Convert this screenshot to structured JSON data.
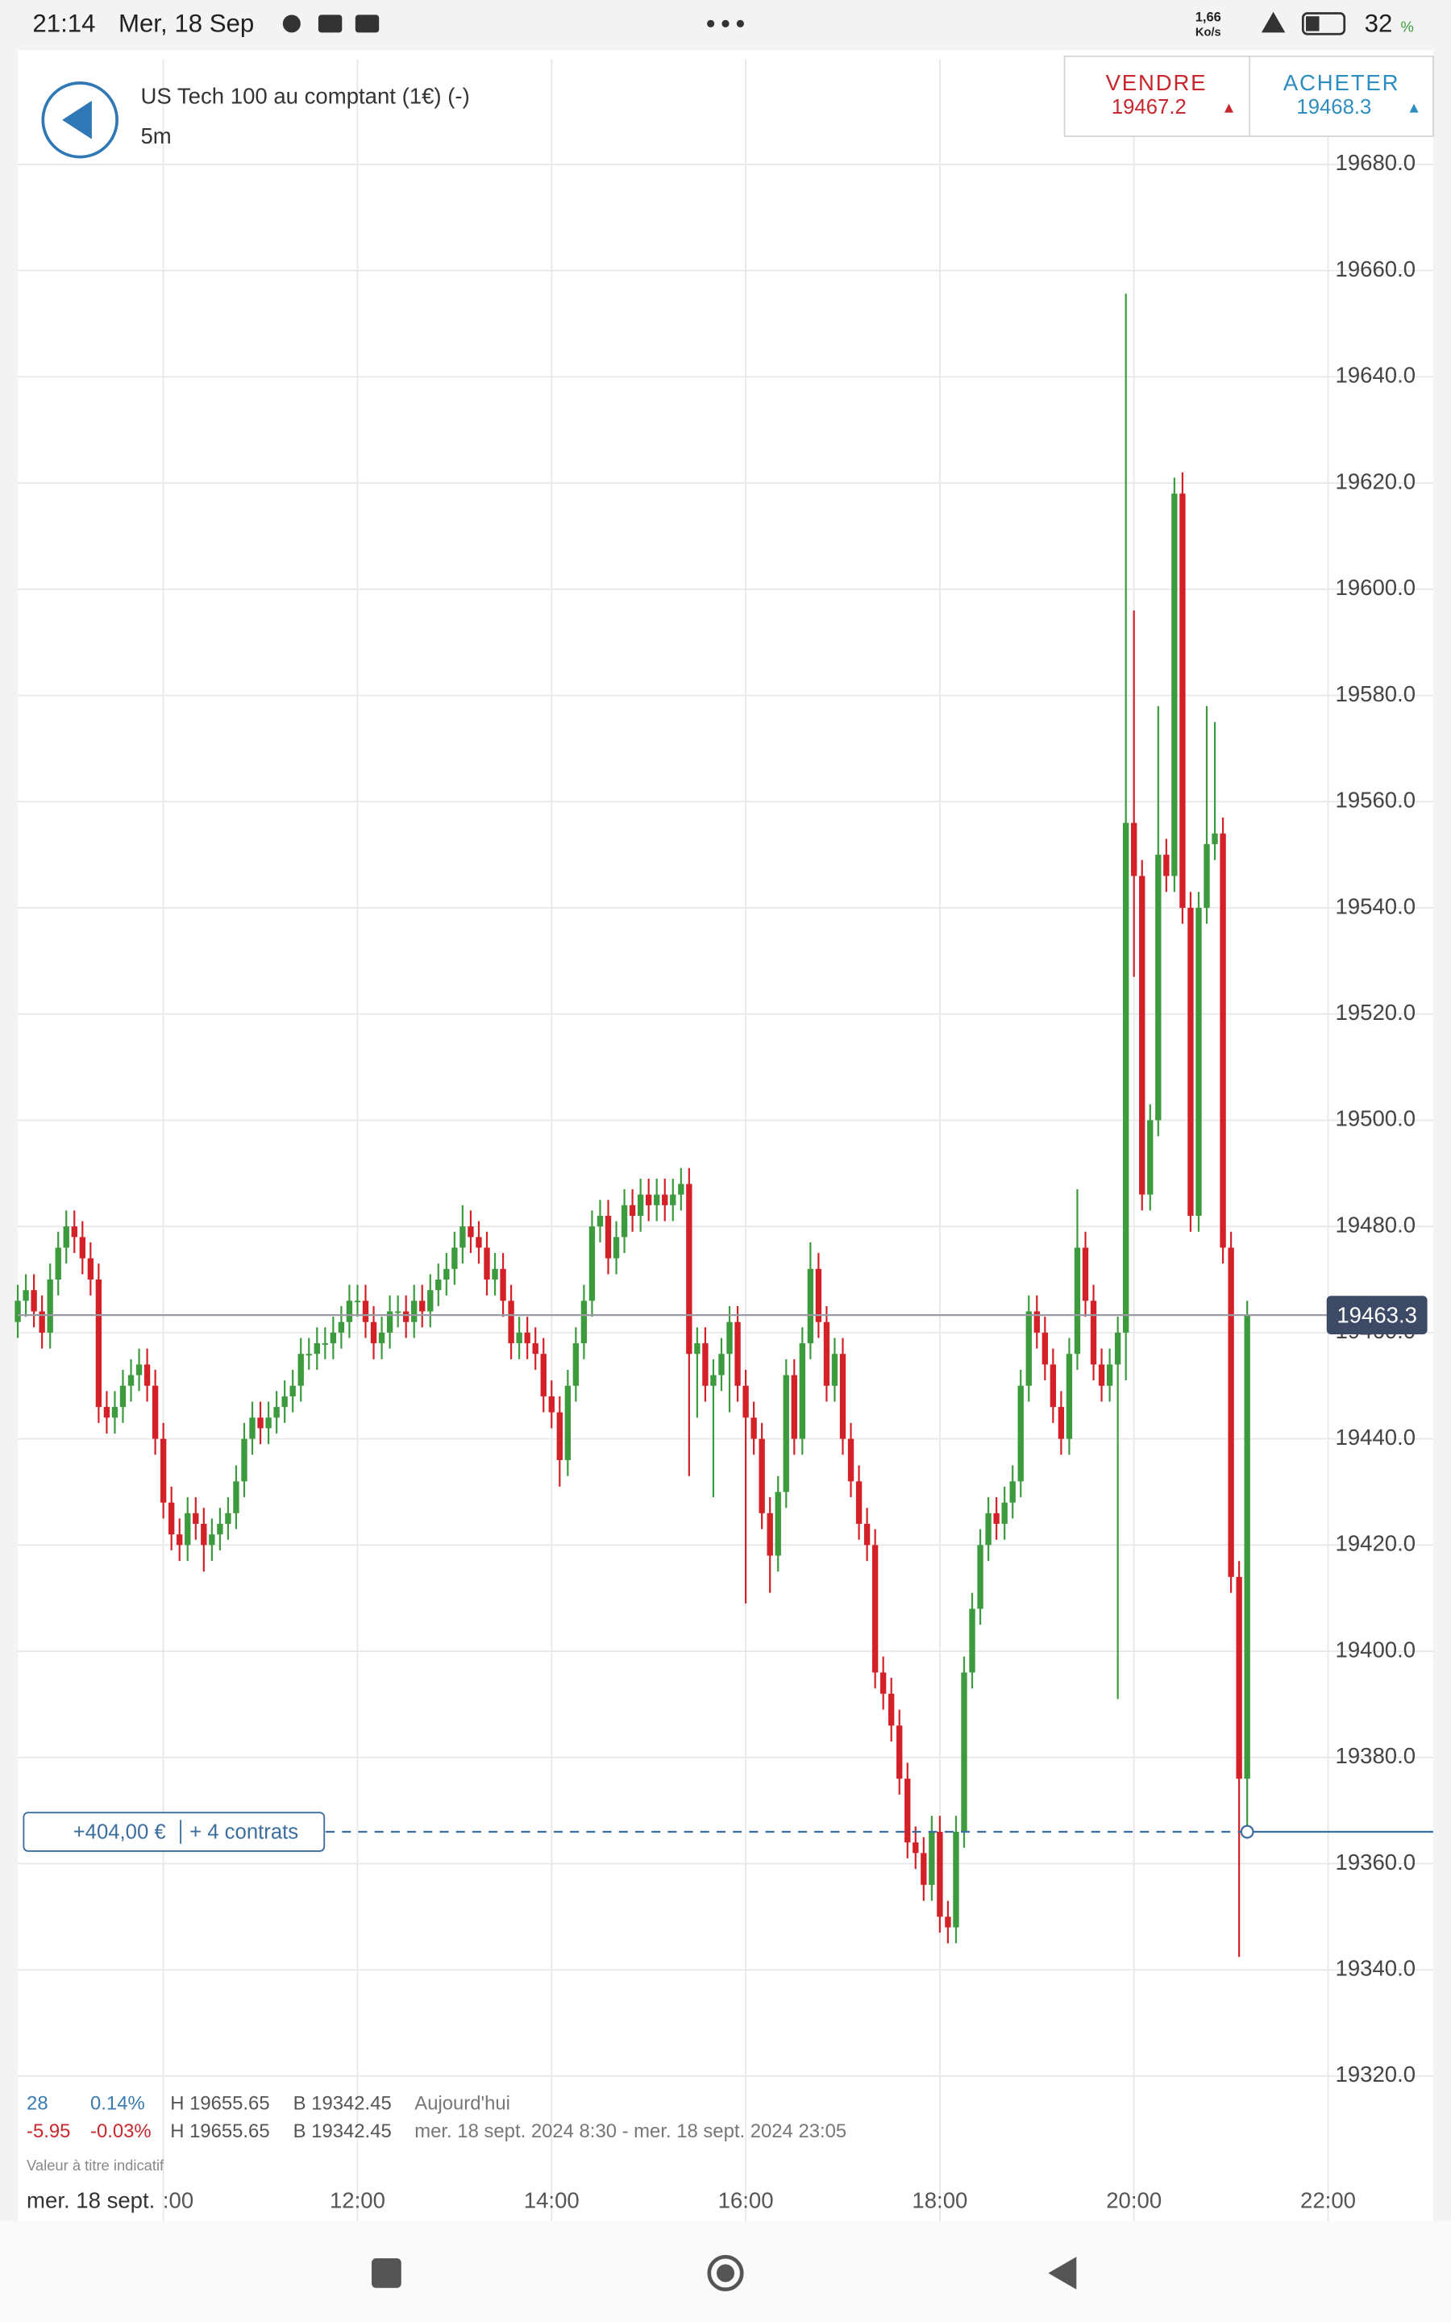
{
  "status_bar": {
    "time": "21:14",
    "date": "Mer, 18 Sep",
    "speed": "1,66",
    "speed_unit": "Ko/s",
    "battery": "32",
    "battery_unit": "%"
  },
  "header": {
    "title": "US Tech 100 au comptant (1€) (-)",
    "timeframe": "5m",
    "sell_label": "VENDRE",
    "sell_price": 19467.2,
    "buy_label": "ACHETER",
    "buy_price": 19468.3
  },
  "position": {
    "pnl": "+404,00 €",
    "contracts": "+ 4 contrats",
    "level": 19366
  },
  "stats": {
    "row1": [
      "28",
      "0.14%",
      "H 19655.65",
      "B 19342.45",
      "Aujourd'hui"
    ],
    "row2": [
      "-5.95",
      "-0.03%",
      "H 19655.65",
      "B 19342.45",
      "mer. 18 sept. 2024 8:30 - mer. 18 sept. 2024 23:05"
    ],
    "note": "Valeur à titre indicatif",
    "date_label": "mer. 18 sept."
  },
  "chart_data": {
    "type": "candlestick",
    "up_color": "#3c9b3c",
    "down_color": "#d42027",
    "grid": true,
    "xlim": [
      "08:30",
      "23:05"
    ],
    "ylim": [
      19290,
      19700
    ],
    "xticks": [
      {
        "value": "10:00",
        "label": ":00"
      },
      "12:00",
      "14:00",
      "16:00",
      "18:00",
      "20:00",
      "22:00"
    ],
    "yticks": [
      {
        "value": 19320,
        "label": "19320.0"
      },
      {
        "value": 19340,
        "label": "19340.0"
      },
      {
        "value": 19360,
        "label": "19360.0"
      },
      {
        "value": 19380,
        "label": "19380.0"
      },
      {
        "value": 19400,
        "label": "19400.0"
      },
      {
        "value": 19420,
        "label": "19420.0"
      },
      {
        "value": 19440,
        "label": "19440.0"
      },
      {
        "value": 19460,
        "label": "19460.0"
      },
      {
        "value": 19480,
        "label": "19480.0"
      },
      {
        "value": 19500,
        "label": "19500.0"
      },
      {
        "value": 19520,
        "label": "19520.0"
      },
      {
        "value": 19540,
        "label": "19540.0"
      },
      {
        "value": 19560,
        "label": "19560.0"
      },
      {
        "value": 19580,
        "label": "19580.0"
      },
      {
        "value": 19600,
        "label": "19600.0"
      },
      {
        "value": 19620,
        "label": "19620.0"
      },
      {
        "value": 19640,
        "label": "19640.0"
      },
      {
        "value": 19660,
        "label": "19660.0"
      },
      {
        "value": 19680,
        "label": "19680.0"
      }
    ],
    "last_price": 19463.3,
    "x": [
      "08:30",
      "08:35",
      "08:40",
      "08:45",
      "08:50",
      "08:55",
      "09:00",
      "09:05",
      "09:10",
      "09:15",
      "09:20",
      "09:25",
      "09:30",
      "09:35",
      "09:40",
      "09:45",
      "09:50",
      "09:55",
      "10:00",
      "10:05",
      "10:10",
      "10:15",
      "10:20",
      "10:25",
      "10:30",
      "10:35",
      "10:40",
      "10:45",
      "10:50",
      "10:55",
      "11:00",
      "11:05",
      "11:10",
      "11:15",
      "11:20",
      "11:25",
      "11:30",
      "11:35",
      "11:40",
      "11:45",
      "11:50",
      "11:55",
      "12:00",
      "12:05",
      "12:10",
      "12:15",
      "12:20",
      "12:25",
      "12:30",
      "12:35",
      "12:40",
      "12:45",
      "12:50",
      "12:55",
      "13:00",
      "13:05",
      "13:10",
      "13:15",
      "13:20",
      "13:25",
      "13:30",
      "13:35",
      "13:40",
      "13:45",
      "13:50",
      "13:55",
      "14:00",
      "14:05",
      "14:10",
      "14:15",
      "14:20",
      "14:25",
      "14:30",
      "14:35",
      "14:40",
      "14:45",
      "14:50",
      "14:55",
      "15:00",
      "15:05",
      "15:10",
      "15:15",
      "15:20",
      "15:25",
      "15:30",
      "15:35",
      "15:40",
      "15:45",
      "15:50",
      "15:55",
      "16:00",
      "16:05",
      "16:10",
      "16:15",
      "16:20",
      "16:25",
      "16:30",
      "16:35",
      "16:40",
      "16:45",
      "16:50",
      "16:55",
      "17:00",
      "17:05",
      "17:10",
      "17:15",
      "17:20",
      "17:25",
      "17:30",
      "17:35",
      "17:40",
      "17:45",
      "17:50",
      "17:55",
      "18:00",
      "18:05",
      "18:10",
      "18:15",
      "18:20",
      "18:25",
      "18:30",
      "18:35",
      "18:40",
      "18:45",
      "18:50",
      "18:55",
      "19:00",
      "19:05",
      "19:10",
      "19:15",
      "19:20",
      "19:25",
      "19:30",
      "19:35",
      "19:40",
      "19:45",
      "19:50",
      "19:55",
      "20:00",
      "20:05",
      "20:10",
      "20:15",
      "20:20",
      "20:25",
      "20:30",
      "20:35",
      "20:40",
      "20:45",
      "20:50",
      "20:55",
      "21:00",
      "21:05",
      "21:10"
    ],
    "ohlc": [
      [
        19462,
        19469,
        19459,
        19466
      ],
      [
        19466,
        19471,
        19463,
        19468
      ],
      [
        19468,
        19471,
        19461,
        19464
      ],
      [
        19464,
        19467,
        19457,
        19460
      ],
      [
        19460,
        19473,
        19457,
        19470
      ],
      [
        19470,
        19479,
        19467,
        19476
      ],
      [
        19476,
        19483,
        19473,
        19480
      ],
      [
        19480,
        19483,
        19475,
        19478
      ],
      [
        19478,
        19481,
        19471,
        19474
      ],
      [
        19474,
        19477,
        19467,
        19470
      ],
      [
        19470,
        19473,
        19443,
        19446
      ],
      [
        19446,
        19449,
        19441,
        19444
      ],
      [
        19444,
        19449,
        19441,
        19446
      ],
      [
        19446,
        19453,
        19443,
        19450
      ],
      [
        19450,
        19455,
        19447,
        19452
      ],
      [
        19452,
        19457,
        19449,
        19454
      ],
      [
        19454,
        19457,
        19447,
        19450
      ],
      [
        19450,
        19453,
        19437,
        19440
      ],
      [
        19440,
        19443,
        19425,
        19428
      ],
      [
        19428,
        19431,
        19419,
        19422
      ],
      [
        19422,
        19425,
        19417,
        19420
      ],
      [
        19420,
        19429,
        19417,
        19426
      ],
      [
        19426,
        19429,
        19421,
        19424
      ],
      [
        19424,
        19427,
        19415,
        19420
      ],
      [
        19420,
        19425,
        19417,
        19422
      ],
      [
        19422,
        19427,
        19419,
        19424
      ],
      [
        19424,
        19429,
        19421,
        19426
      ],
      [
        19426,
        19435,
        19423,
        19432
      ],
      [
        19432,
        19443,
        19429,
        19440
      ],
      [
        19440,
        19447,
        19437,
        19444
      ],
      [
        19444,
        19447,
        19439,
        19442
      ],
      [
        19442,
        19447,
        19439,
        19444
      ],
      [
        19444,
        19449,
        19441,
        19446
      ],
      [
        19446,
        19451,
        19443,
        19448
      ],
      [
        19448,
        19453,
        19445,
        19450
      ],
      [
        19450,
        19459,
        19447,
        19456
      ],
      [
        19456,
        19459,
        19453,
        19456
      ],
      [
        19456,
        19461,
        19453,
        19458
      ],
      [
        19458,
        19461,
        19455,
        19458
      ],
      [
        19458,
        19463,
        19455,
        19460
      ],
      [
        19460,
        19465,
        19457,
        19462
      ],
      [
        19462,
        19469,
        19459,
        19466
      ],
      [
        19466,
        19469,
        19463,
        19466
      ],
      [
        19466,
        19469,
        19459,
        19462
      ],
      [
        19462,
        19465,
        19455,
        19458
      ],
      [
        19458,
        19463,
        19455,
        19460
      ],
      [
        19460,
        19467,
        19457,
        19464
      ],
      [
        19464,
        19467,
        19461,
        19464
      ],
      [
        19464,
        19467,
        19459,
        19462
      ],
      [
        19462,
        19469,
        19459,
        19466
      ],
      [
        19466,
        19469,
        19461,
        19464
      ],
      [
        19464,
        19471,
        19461,
        19468
      ],
      [
        19468,
        19473,
        19465,
        19470
      ],
      [
        19470,
        19475,
        19467,
        19472
      ],
      [
        19472,
        19479,
        19469,
        19476
      ],
      [
        19476,
        19484,
        19473,
        19480
      ],
      [
        19480,
        19483,
        19475,
        19478
      ],
      [
        19478,
        19481,
        19473,
        19476
      ],
      [
        19476,
        19479,
        19467,
        19470
      ],
      [
        19470,
        19475,
        19467,
        19472
      ],
      [
        19472,
        19475,
        19463,
        19466
      ],
      [
        19466,
        19469,
        19455,
        19458
      ],
      [
        19458,
        19463,
        19455,
        19460
      ],
      [
        19460,
        19463,
        19455,
        19458
      ],
      [
        19458,
        19461,
        19453,
        19456
      ],
      [
        19456,
        19459,
        19445,
        19448
      ],
      [
        19448,
        19451,
        19442,
        19445
      ],
      [
        19445,
        19448,
        19431,
        19436
      ],
      [
        19436,
        19453,
        19433,
        19450
      ],
      [
        19450,
        19461,
        19447,
        19458
      ],
      [
        19458,
        19469,
        19455,
        19466
      ],
      [
        19466,
        19483,
        19463,
        19480
      ],
      [
        19480,
        19485,
        19477,
        19482
      ],
      [
        19482,
        19485,
        19471,
        19474
      ],
      [
        19474,
        19481,
        19471,
        19478
      ],
      [
        19478,
        19487,
        19475,
        19484
      ],
      [
        19484,
        19487,
        19479,
        19482
      ],
      [
        19482,
        19489,
        19479,
        19486
      ],
      [
        19486,
        19489,
        19481,
        19484
      ],
      [
        19484,
        19489,
        19481,
        19486
      ],
      [
        19486,
        19489,
        19481,
        19484
      ],
      [
        19484,
        19489,
        19481,
        19486
      ],
      [
        19486,
        19491,
        19483,
        19488
      ],
      [
        19488,
        19491,
        19433,
        19456
      ],
      [
        19456,
        19461,
        19444,
        19458
      ],
      [
        19458,
        19461,
        19447,
        19450
      ],
      [
        19450,
        19455,
        19429,
        19452
      ],
      [
        19452,
        19459,
        19449,
        19456
      ],
      [
        19456,
        19465,
        19445,
        19462
      ],
      [
        19462,
        19465,
        19447,
        19450
      ],
      [
        19450,
        19453,
        19409,
        19444
      ],
      [
        19444,
        19447,
        19437,
        19440
      ],
      [
        19440,
        19443,
        19423,
        19426
      ],
      [
        19426,
        19429,
        19411,
        19418
      ],
      [
        19418,
        19433,
        19415,
        19430
      ],
      [
        19430,
        19455,
        19427,
        19452
      ],
      [
        19452,
        19455,
        19437,
        19440
      ],
      [
        19440,
        19461,
        19437,
        19458
      ],
      [
        19458,
        19477,
        19455,
        19472
      ],
      [
        19472,
        19475,
        19459,
        19462
      ],
      [
        19462,
        19465,
        19447,
        19450
      ],
      [
        19450,
        19459,
        19447,
        19456
      ],
      [
        19456,
        19459,
        19437,
        19440
      ],
      [
        19440,
        19443,
        19429,
        19432
      ],
      [
        19432,
        19435,
        19421,
        19424
      ],
      [
        19424,
        19427,
        19417,
        19420
      ],
      [
        19420,
        19423,
        19393,
        19396
      ],
      [
        19396,
        19399,
        19389,
        19392
      ],
      [
        19392,
        19395,
        19383,
        19386
      ],
      [
        19386,
        19389,
        19373,
        19376
      ],
      [
        19376,
        19379,
        19361,
        19364
      ],
      [
        19364,
        19367,
        19359,
        19362
      ],
      [
        19362,
        19365,
        19353,
        19356
      ],
      [
        19356,
        19369,
        19353,
        19366
      ],
      [
        19366,
        19369,
        19347,
        19350
      ],
      [
        19350,
        19353,
        19345,
        19348
      ],
      [
        19348,
        19369,
        19345,
        19366
      ],
      [
        19366,
        19399,
        19363,
        19396
      ],
      [
        19396,
        19411,
        19393,
        19408
      ],
      [
        19408,
        19423,
        19405,
        19420
      ],
      [
        19420,
        19429,
        19417,
        19426
      ],
      [
        19426,
        19429,
        19421,
        19424
      ],
      [
        19424,
        19431,
        19421,
        19428
      ],
      [
        19428,
        19435,
        19425,
        19432
      ],
      [
        19432,
        19453,
        19429,
        19450
      ],
      [
        19450,
        19467,
        19447,
        19464
      ],
      [
        19464,
        19467,
        19457,
        19460
      ],
      [
        19460,
        19463,
        19451,
        19454
      ],
      [
        19454,
        19457,
        19443,
        19446
      ],
      [
        19446,
        19449,
        19437,
        19440
      ],
      [
        19440,
        19459,
        19437,
        19456
      ],
      [
        19456,
        19487,
        19453,
        19476
      ],
      [
        19476,
        19479,
        19463,
        19466
      ],
      [
        19466,
        19469,
        19451,
        19454
      ],
      [
        19454,
        19457,
        19447,
        19450
      ],
      [
        19450,
        19457,
        19447,
        19454
      ],
      [
        19454,
        19463,
        19391,
        19460
      ],
      [
        19460,
        19655.65,
        19451,
        19556
      ],
      [
        19556,
        19596,
        19527,
        19546
      ],
      [
        19546,
        19549,
        19483,
        19486
      ],
      [
        19486,
        19503,
        19483,
        19500
      ],
      [
        19500,
        19578,
        19497,
        19550
      ],
      [
        19550,
        19553,
        19543,
        19546
      ],
      [
        19546,
        19621,
        19543,
        19618
      ],
      [
        19618,
        19622,
        19537,
        19540
      ],
      [
        19540,
        19543,
        19479,
        19482
      ],
      [
        19482,
        19543,
        19479,
        19540
      ],
      [
        19540,
        19578,
        19537,
        19552
      ],
      [
        19552,
        19575,
        19549,
        19554
      ],
      [
        19554,
        19557,
        19473,
        19476
      ],
      [
        19476,
        19479,
        19411,
        19414
      ],
      [
        19414,
        19417,
        19342.45,
        19376
      ],
      [
        19376,
        19466,
        19366,
        19463.3
      ]
    ]
  }
}
